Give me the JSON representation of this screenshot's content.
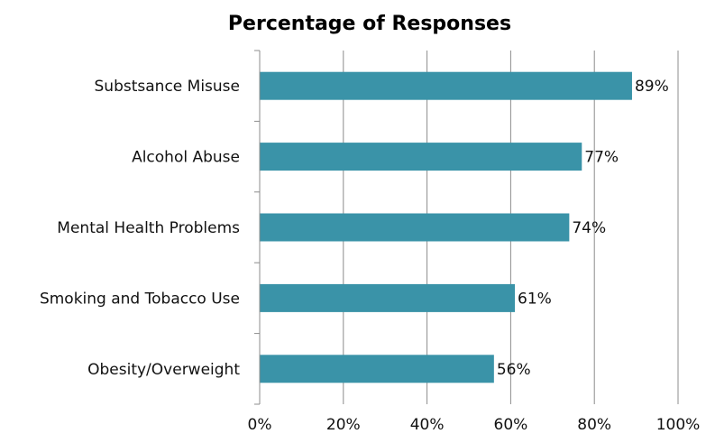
{
  "chart_data": {
    "type": "bar",
    "orientation": "horizontal",
    "title": "Percentage of Responses",
    "categories": [
      "Substsance Misuse",
      "Alcohol Abuse",
      "Mental Health Problems",
      "Smoking and Tobacco Use",
      "Obesity/Overweight"
    ],
    "values": [
      89,
      77,
      74,
      61,
      56
    ],
    "data_labels": [
      "89%",
      "77%",
      "74%",
      "61%",
      "56%"
    ],
    "xlim": [
      0,
      100
    ],
    "x_ticks": [
      0,
      20,
      40,
      60,
      80,
      100
    ],
    "x_tick_labels": [
      "0%",
      "20%",
      "40%",
      "60%",
      "80%",
      "100%"
    ],
    "grid": "vertical",
    "legend": "none",
    "colors": {
      "bar": "#3a93a8",
      "grid": "#8c8c8c",
      "axis": "#8c8c8c",
      "text": "#111111"
    }
  }
}
